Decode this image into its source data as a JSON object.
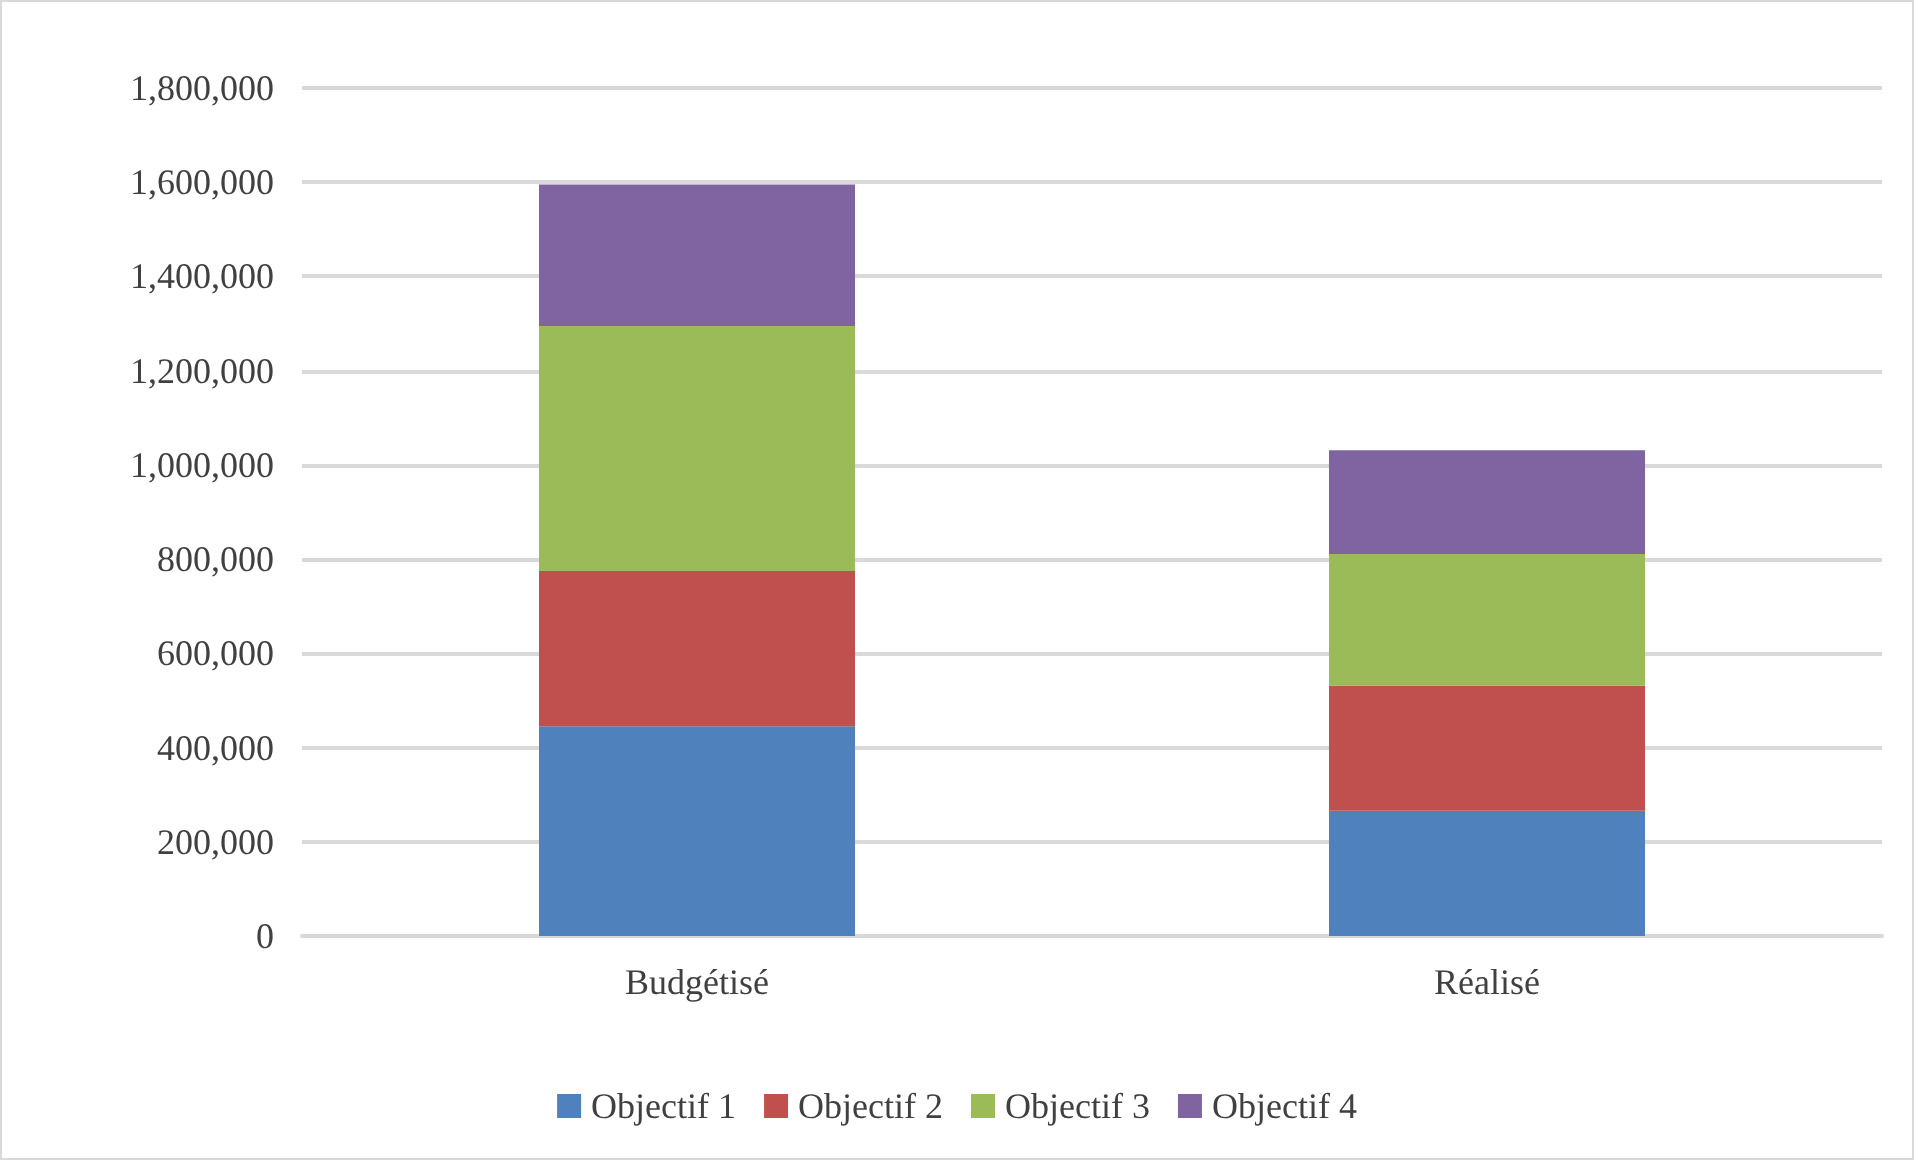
{
  "chart_data": {
    "type": "bar",
    "stacked": true,
    "categories": [
      "Budgétisé",
      "Réalisé"
    ],
    "series": [
      {
        "name": "Objectif 1",
        "color": "#4f81bd",
        "values": [
          445000,
          266000
        ]
      },
      {
        "name": "Objectif 2",
        "color": "#c0504d",
        "values": [
          330000,
          265000
        ]
      },
      {
        "name": "Objectif 3",
        "color": "#9bbb59",
        "values": [
          520000,
          280000
        ]
      },
      {
        "name": "Objectif 4",
        "color": "#8064a2",
        "values": [
          300000,
          220000
        ]
      }
    ],
    "ylim": [
      0,
      1800000
    ],
    "yticks": [
      0,
      {
        "value": 200000,
        "label": "200,000"
      },
      {
        "value": 400000,
        "label": "400,000"
      },
      {
        "value": 600000,
        "label": "600,000"
      },
      {
        "value": 800000,
        "label": "800,000"
      },
      {
        "value": 1000000,
        "label": "1,000,000"
      },
      {
        "value": 1200000,
        "label": "1,200,000"
      },
      {
        "value": 1400000,
        "label": "1,400,000"
      },
      {
        "value": 1600000,
        "label": "1,600,000"
      },
      {
        "value": 1800000,
        "label": "1,800,000"
      }
    ],
    "grid": "y",
    "legend": "bottom"
  }
}
